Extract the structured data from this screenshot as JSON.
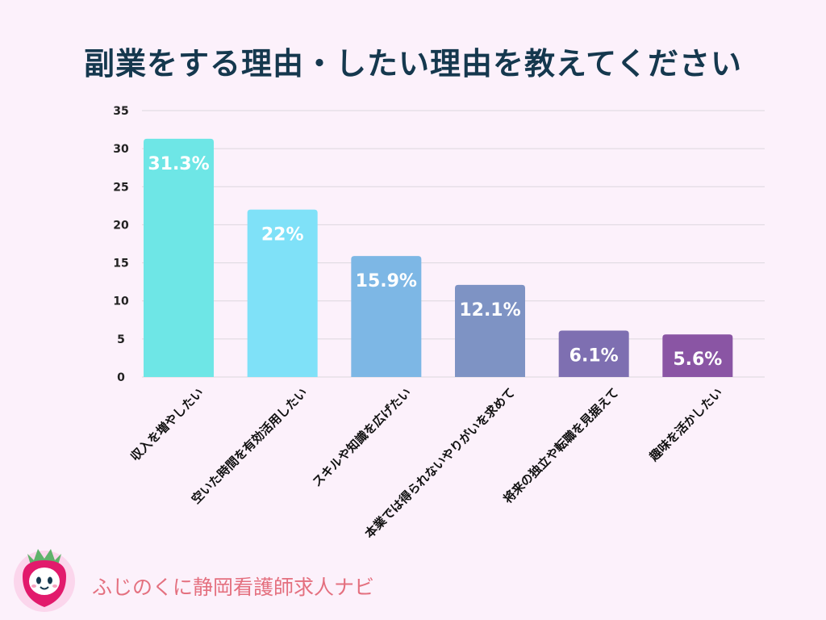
{
  "title": "副業をする理由・したい理由を教えてください",
  "brand": {
    "name": "ふじのくに静岡看護師求人ナビ"
  },
  "colors": {
    "background": "#fcf1fb",
    "title": "#15384e",
    "brand_text": "#e4707f",
    "bars": [
      "#6ee6e6",
      "#7fe1f8",
      "#7db7e5",
      "#7e93c4",
      "#7e6fb1",
      "#8a55a4"
    ]
  },
  "chart_data": {
    "type": "bar",
    "title": "副業をする理由・したい理由を教えてください",
    "categories": [
      "収入を増やしたい",
      "空いた時間を有効活用したい",
      "スキルや知識を広げたい",
      "本業では得られないやりがいを求めて",
      "将来の独立や転職を見据えて",
      "趣味を活かしたい"
    ],
    "values": [
      31.3,
      22,
      15.9,
      12.1,
      6.1,
      5.6
    ],
    "value_labels": [
      "31.3%",
      "22%",
      "15.9%",
      "12.1%",
      "6.1%",
      "5.6%"
    ],
    "yticks": [
      0,
      5,
      10,
      15,
      20,
      25,
      30,
      35
    ],
    "ylim": [
      0,
      35
    ],
    "xlabel": "",
    "ylabel": "",
    "grid": true,
    "legend": "none"
  }
}
